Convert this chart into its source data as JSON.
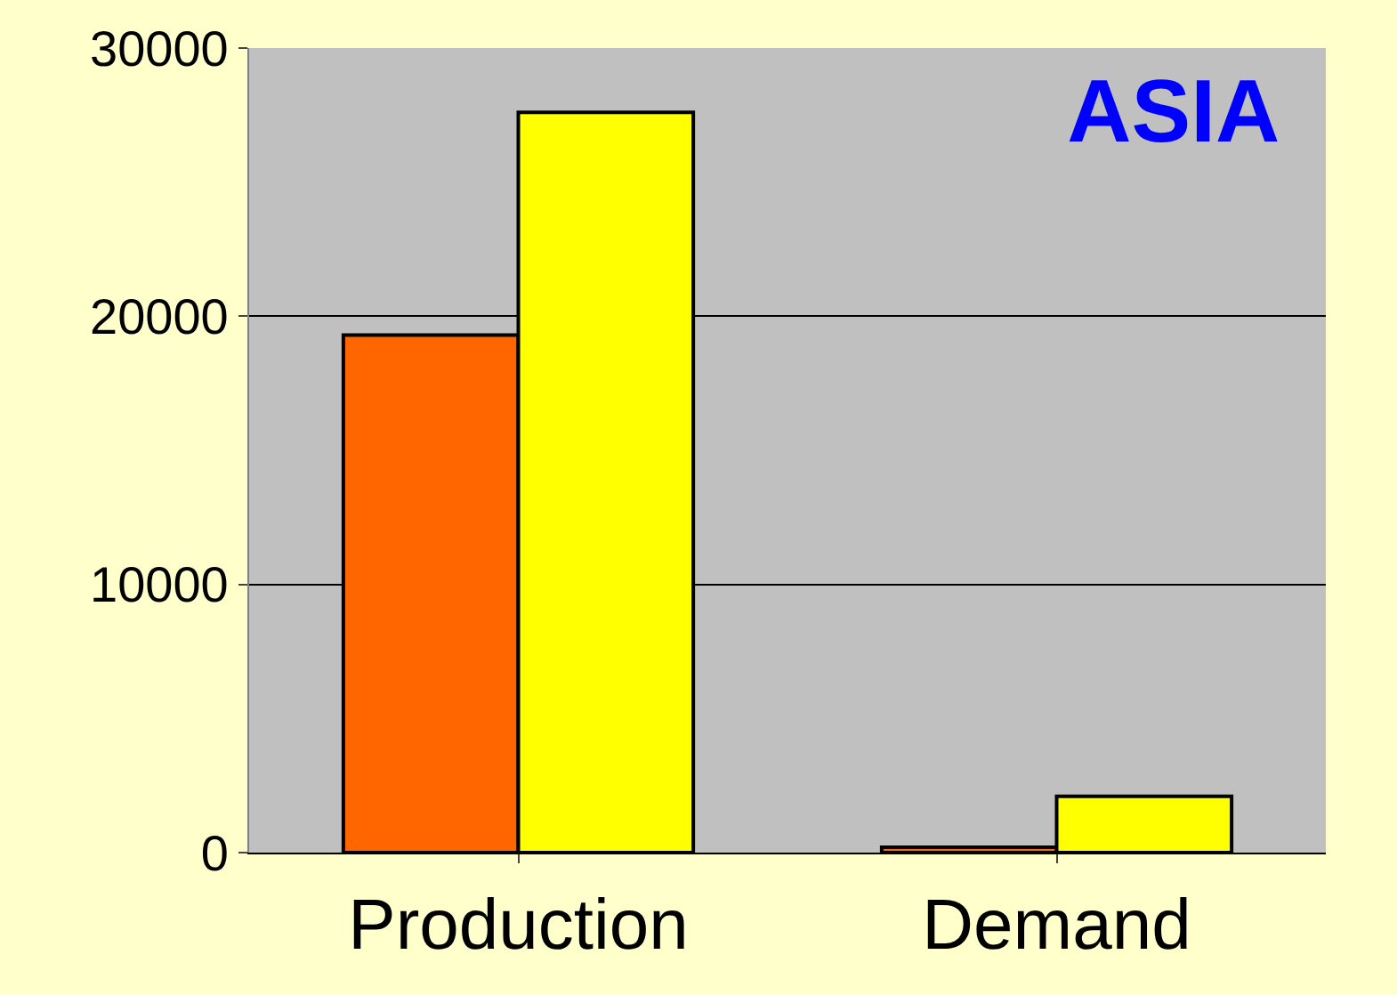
{
  "chart_data": {
    "type": "bar",
    "title": "ASIA",
    "categories": [
      "Production",
      "Demand"
    ],
    "series": [
      {
        "color": "#ff6600",
        "values": [
          19300,
          200
        ]
      },
      {
        "color": "#ffff00",
        "values": [
          27600,
          2100
        ]
      }
    ],
    "ylim": [
      0,
      30000
    ],
    "yticks": [
      0,
      10000,
      20000,
      30000
    ],
    "grid": "y"
  }
}
